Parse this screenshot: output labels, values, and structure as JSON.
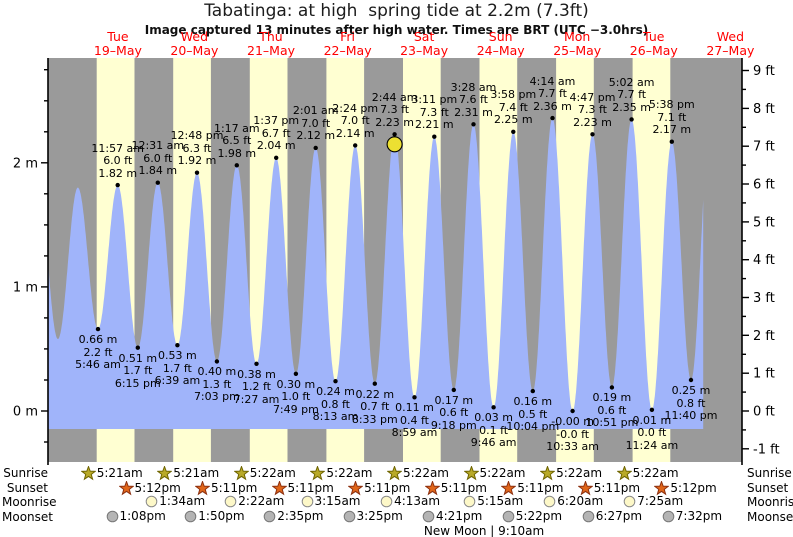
{
  "page": {
    "title": "Tabatinga: at high  spring tide at 2.2m (7.3ft)",
    "subtitle": "Image captured 13 minutes after high water. Times are BRT (UTC −3.0hrs)"
  },
  "colors": {
    "night_band": "#9a9a9a",
    "day_band": "#ffffd2",
    "tide_fill": "#a0b4fa",
    "axis": "#000000",
    "day_label_red": "#ff0000",
    "current_marker_yellow": "#ece032",
    "sunrise_star_fill": "#b9aa28",
    "sunrise_star_stroke": "#6e6400",
    "sunset_star_fill": "#e0661a",
    "sunset_star_stroke": "#8c3010",
    "moonrise_circle_fill": "#fdf8c8",
    "moonrise_circle_stroke": "#8a8a8a",
    "moonset_circle_fill": "#b4b4b4",
    "moonset_circle_stroke": "#787878"
  },
  "chart_data": {
    "type": "area",
    "title": "Tabatinga: at high  spring tide at 2.2m (7.3ft)",
    "x_unit": "hours since Tue 19-May 00:00 (BRT)",
    "y_left_ticks_m": [
      {
        "m": 0,
        "label": "0 m"
      },
      {
        "m": 1,
        "label": "1 m"
      },
      {
        "m": 2,
        "label": "2 m"
      }
    ],
    "y_right_ticks_ft": [
      {
        "ft": -1,
        "label": "-1 ft"
      },
      {
        "ft": 0,
        "label": "0 ft"
      },
      {
        "ft": 1,
        "label": "1 ft"
      },
      {
        "ft": 2,
        "label": "2 ft"
      },
      {
        "ft": 3,
        "label": "3 ft"
      },
      {
        "ft": 4,
        "label": "4 ft"
      },
      {
        "ft": 5,
        "label": "5 ft"
      },
      {
        "ft": 6,
        "label": "6 ft"
      },
      {
        "ft": 7,
        "label": "7 ft"
      },
      {
        "ft": 8,
        "label": "8 ft"
      },
      {
        "ft": 9,
        "label": "9 ft"
      }
    ],
    "days": [
      {
        "weekday": "Tue",
        "date": "19–May",
        "noon_t": 12
      },
      {
        "weekday": "Wed",
        "date": "20–May",
        "noon_t": 36
      },
      {
        "weekday": "Thu",
        "date": "21–May",
        "noon_t": 60
      },
      {
        "weekday": "Fri",
        "date": "22–May",
        "noon_t": 84
      },
      {
        "weekday": "Sat",
        "date": "23–May",
        "noon_t": 108
      },
      {
        "weekday": "Sun",
        "date": "24–May",
        "noon_t": 132
      },
      {
        "weekday": "Mon",
        "date": "25–May",
        "noon_t": 156
      },
      {
        "weekday": "Tue",
        "date": "26–May",
        "noon_t": 180
      },
      {
        "weekday": "Wed",
        "date": "27–May",
        "noon_t": 204
      }
    ],
    "tides": [
      {
        "kind": "low",
        "m_label": "0.66 m",
        "ft_label": "2.2 ft",
        "time": "5:46 am",
        "t": 5.767,
        "m": 0.66
      },
      {
        "kind": "high",
        "time": "11:57 am",
        "ft_label": "6.0 ft",
        "m_label": "1.82 m",
        "t": 11.95,
        "m": 1.82
      },
      {
        "kind": "low",
        "m_label": "0.51 m",
        "ft_label": "1.7 ft",
        "time": "6:15 pm",
        "t": 18.25,
        "m": 0.51
      },
      {
        "kind": "high",
        "time": "12:31 am",
        "ft_label": "6.0 ft",
        "m_label": "1.84 m",
        "t": 24.517,
        "m": 1.84
      },
      {
        "kind": "low",
        "m_label": "0.53 m",
        "ft_label": "1.7 ft",
        "time": "6:39 am",
        "t": 30.65,
        "m": 0.53
      },
      {
        "kind": "high",
        "time": "12:48 pm",
        "ft_label": "6.3 ft",
        "m_label": "1.92 m",
        "t": 36.8,
        "m": 1.92
      },
      {
        "kind": "low",
        "m_label": "0.40 m",
        "ft_label": "1.3 ft",
        "time": "7:03 pm",
        "t": 43.05,
        "m": 0.4
      },
      {
        "kind": "high",
        "time": "1:17 am",
        "ft_label": "6.5 ft",
        "m_label": "1.98 m",
        "t": 49.283,
        "m": 1.98
      },
      {
        "kind": "low",
        "m_label": "0.38 m",
        "ft_label": "1.2 ft",
        "time": "7:27 am",
        "t": 55.45,
        "m": 0.38
      },
      {
        "kind": "high",
        "time": "1:37 pm",
        "ft_label": "6.7 ft",
        "m_label": "2.04 m",
        "t": 61.617,
        "m": 2.04
      },
      {
        "kind": "low",
        "m_label": "0.30 m",
        "ft_label": "1.0 ft",
        "time": "7:49 pm",
        "t": 67.817,
        "m": 0.3
      },
      {
        "kind": "high",
        "time": "2:01 am",
        "ft_label": "7.0 ft",
        "m_label": "2.12 m",
        "t": 74.017,
        "m": 2.12
      },
      {
        "kind": "low",
        "m_label": "0.24 m",
        "ft_label": "0.8 ft",
        "time": "8:13 am",
        "t": 80.217,
        "m": 0.24
      },
      {
        "kind": "high",
        "time": "2:24 pm",
        "ft_label": "7.0 ft",
        "m_label": "2.14 m",
        "t": 86.4,
        "m": 2.14
      },
      {
        "kind": "low",
        "m_label": "0.22 m",
        "ft_label": "0.7 ft",
        "time": "8:33 pm",
        "t": 92.55,
        "m": 0.22
      },
      {
        "kind": "high",
        "time": "2:44 am",
        "ft_label": "7.3 ft",
        "m_label": "2.23 m",
        "t": 98.733,
        "m": 2.23,
        "current": true
      },
      {
        "kind": "low",
        "m_label": "0.11 m",
        "ft_label": "0.4 ft",
        "time": "8:59 am",
        "t": 104.983,
        "m": 0.11
      },
      {
        "kind": "high",
        "time": "3:11 pm",
        "ft_label": "7.3 ft",
        "m_label": "2.21 m",
        "t": 111.183,
        "m": 2.21
      },
      {
        "kind": "low",
        "m_label": "0.17 m",
        "ft_label": "0.6 ft",
        "time": "9:18 pm",
        "t": 117.3,
        "m": 0.17
      },
      {
        "kind": "high",
        "time": "3:28 am",
        "ft_label": "7.6 ft",
        "m_label": "2.31 m",
        "t": 123.467,
        "m": 2.31
      },
      {
        "kind": "low",
        "m_label": "0.03 m",
        "ft_label": "0.1 ft",
        "time": "9:46 am",
        "t": 129.767,
        "m": 0.03
      },
      {
        "kind": "high",
        "time": "3:58 pm",
        "ft_label": "7.4 ft",
        "m_label": "2.25 m",
        "t": 135.967,
        "m": 2.25
      },
      {
        "kind": "low",
        "m_label": "0.16 m",
        "ft_label": "0.5 ft",
        "time": "10:04 pm",
        "t": 142.067,
        "m": 0.16
      },
      {
        "kind": "high",
        "time": "4:14 am",
        "ft_label": "7.7 ft",
        "m_label": "2.36 m",
        "t": 148.233,
        "m": 2.36
      },
      {
        "kind": "low",
        "m_label": "-0.00 m",
        "ft_label": "-0.0 ft",
        "time": "10:33 am",
        "t": 154.55,
        "m": 0.0
      },
      {
        "kind": "high",
        "time": "4:47 pm",
        "ft_label": "7.3 ft",
        "m_label": "2.23 m",
        "t": 160.783,
        "m": 2.23
      },
      {
        "kind": "low",
        "m_label": "0.19 m",
        "ft_label": "0.6 ft",
        "time": "10:51 pm",
        "t": 166.85,
        "m": 0.19
      },
      {
        "kind": "high",
        "time": "5:02 am",
        "ft_label": "7.7 ft",
        "m_label": "2.35 m",
        "t": 173.033,
        "m": 2.35
      },
      {
        "kind": "low",
        "m_label": "0.01 m",
        "ft_label": "0.0 ft",
        "time": "11:24 am",
        "t": 179.4,
        "m": 0.01
      },
      {
        "kind": "high",
        "time": "5:38 pm",
        "ft_label": "7.1 ft",
        "m_label": "2.17 m",
        "t": 185.633,
        "m": 2.17
      },
      {
        "kind": "low",
        "m_label": "0.25 m",
        "ft_label": "0.8 ft",
        "time": "11:40 pm",
        "t": 191.667,
        "m": 0.25
      }
    ],
    "curve_padding": {
      "pre": [
        [
          -13,
          1.8
        ],
        [
          -6.8,
          0.58
        ],
        [
          -0.55,
          1.8
        ]
      ],
      "post": [
        [
          197.8,
          2.35
        ]
      ],
      "t_start": -9.9,
      "t_end": 195.5,
      "fill_bottom_m": -0.145
    }
  },
  "astro": {
    "row_labels": [
      "Sunrise",
      "Sunset",
      "Moonrise",
      "Moonset"
    ],
    "sunrise": [
      {
        "time": "5:21am",
        "t": 5.35
      },
      {
        "time": "5:21am",
        "t": 29.35
      },
      {
        "time": "5:22am",
        "t": 53.367
      },
      {
        "time": "5:22am",
        "t": 77.367
      },
      {
        "time": "5:22am",
        "t": 101.367
      },
      {
        "time": "5:22am",
        "t": 125.367
      },
      {
        "time": "5:22am",
        "t": 149.367
      },
      {
        "time": "5:22am",
        "t": 173.367
      }
    ],
    "sunset": [
      {
        "time": "5:12pm",
        "t": 17.2
      },
      {
        "time": "5:11pm",
        "t": 41.183
      },
      {
        "time": "5:11pm",
        "t": 65.183
      },
      {
        "time": "5:11pm",
        "t": 89.183
      },
      {
        "time": "5:11pm",
        "t": 113.183
      },
      {
        "time": "5:11pm",
        "t": 137.183
      },
      {
        "time": "5:11pm",
        "t": 161.183
      },
      {
        "time": "5:12pm",
        "t": 185.2
      }
    ],
    "moonrise": [
      {
        "time": "1:34am",
        "t": 25.567
      },
      {
        "time": "2:22am",
        "t": 50.367
      },
      {
        "time": "3:15am",
        "t": 74.25
      },
      {
        "time": "4:13am",
        "t": 99.217
      },
      {
        "time": "5:15am",
        "t": 125.25
      },
      {
        "time": "6:20am",
        "t": 150.333
      },
      {
        "time": "7:25am",
        "t": 175.417
      }
    ],
    "moonset": [
      {
        "time": "1:08pm",
        "t": 13.133
      },
      {
        "time": "1:50pm",
        "t": 37.833
      },
      {
        "time": "2:35pm",
        "t": 62.583
      },
      {
        "time": "3:25pm",
        "t": 87.417
      },
      {
        "time": "4:21pm",
        "t": 112.35
      },
      {
        "time": "5:22pm",
        "t": 137.367
      },
      {
        "time": "6:27pm",
        "t": 162.45
      },
      {
        "time": "7:32pm",
        "t": 187.533
      }
    ],
    "new_moon": {
      "text": "New Moon | 9:10am",
      "t": 126.8
    }
  }
}
